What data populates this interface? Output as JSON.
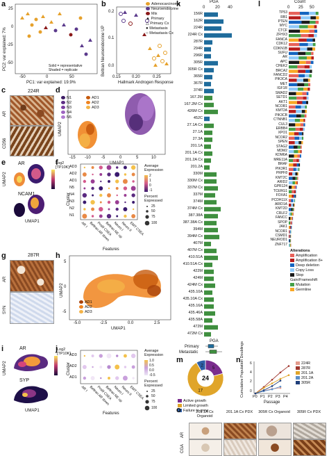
{
  "panels": {
    "a": {
      "label": "a",
      "xlabel": "PC1: var explained: 19.9%",
      "ylabel": "PC2: var explained: 7%",
      "xticks": [
        "-50",
        "0",
        "50"
      ],
      "yticks": [
        "25",
        "0",
        "-25",
        "-50"
      ],
      "note1": "Solid = representative",
      "note2": "Shaded = replicate"
    },
    "b": {
      "label": "b",
      "xlabel": "Hallmark Androgen Response",
      "ylabel": "Beltran Neuroendocrine UP",
      "xticks": [
        "0.15",
        "0.20",
        "0.25"
      ],
      "yticks": [
        "0.2",
        "0.1",
        "0.0"
      ],
      "legend": [
        "Adenocarcinoma",
        "Neuroendocrine",
        "Mix",
        "Primary",
        "Primary Cx",
        "Metastasis",
        "Metastasis Cx"
      ]
    },
    "c": {
      "label": "c",
      "title": "224R",
      "row1": "AR",
      "row2": "CD56"
    },
    "d": {
      "label": "d",
      "xlabel": "UMAP1",
      "ylabel": "UMAP2",
      "xticks": [
        "-15",
        "-10",
        "-5",
        "0",
        "5",
        "10"
      ],
      "yticks": [
        "10",
        "5",
        "0",
        "-5"
      ],
      "legend": [
        "N1",
        "N2",
        "N3",
        "N4",
        "N5",
        "AD1",
        "AD2",
        "AD3"
      ]
    },
    "e": {
      "label": "e",
      "gene1": "AR",
      "gene2": "NCAM1",
      "scale": "Log2 [TP10K]",
      "xlabel": "UMAP1",
      "ylabel": "UMAP2",
      "xticks": [
        "-15",
        "-5",
        "5"
      ],
      "yticks": [
        "10",
        "0",
        "-10"
      ]
    },
    "f": {
      "label": "f",
      "ylabel": "Cluster",
      "xlabel": "Features",
      "rows": [
        "AD3",
        "AD2",
        "AD1",
        "N5",
        "N4",
        "N3",
        "N2",
        "N1"
      ],
      "features": [
        "AR I",
        "Beltran AR down",
        "Prolif CSEA",
        "Beltran NE up",
        "Neuro I",
        "Neuro II",
        "EMT CSEA"
      ],
      "legend_title": "Average Expression",
      "legend_ticks": [
        "2",
        "1",
        "0",
        "-1"
      ],
      "pct_title": "Percent Expressed",
      "pct_values": [
        "25",
        "50",
        "75",
        "100"
      ]
    },
    "g": {
      "label": "g",
      "title": "287R",
      "row1": "AR",
      "row2": "SYN"
    },
    "h": {
      "label": "h",
      "xlabel": "UMAP1",
      "ylabel": "UMAP2",
      "xticks": [
        "-5.0",
        "-2.5",
        "0.0",
        "2.5"
      ],
      "yticks": [
        "5",
        "0",
        "-5"
      ],
      "legend": [
        "AD1",
        "AD2",
        "AD3"
      ]
    },
    "i": {
      "label": "i",
      "gene1": "AR",
      "gene2": "SYP",
      "scale": "Log2 [TP10K]",
      "xlabel": "UMAP1",
      "ylabel": "UMAP2",
      "yticks": [
        "5",
        "0",
        "-5"
      ]
    },
    "j": {
      "label": "j",
      "ylabel": "Cluster",
      "xlabel": "Features",
      "rows": [
        "AD3",
        "AD2",
        "AD1"
      ],
      "features": [
        "AR I",
        "Beltran AR down",
        "Prolif CSEA",
        "Beltran NE up",
        "Neuro I",
        "Neuro II",
        "EMT CSEA"
      ],
      "legend_title": "Average Expression",
      "legend_ticks": [
        "1.0",
        "0.5",
        "0.0",
        "-0.5"
      ],
      "pct_title": "Percent Expressed",
      "pct_values": [
        "25",
        "50",
        "75",
        "100"
      ]
    },
    "k": {
      "label": "k",
      "axis_title": "PGA",
      "ticks": [
        "0",
        "20",
        "40"
      ],
      "samples": [
        "156R",
        "162R",
        "224R",
        "224R Cx",
        "287R",
        "294R",
        "296R",
        "305R",
        "305R Cx",
        "365R",
        "367R",
        "374R",
        "167.2M",
        "167.2M Cx",
        "426M Cx",
        "452C",
        "27.1A Cx",
        "27.1A",
        "27.3A",
        "201.1A",
        "201.1A Cx",
        "201.2A Cx",
        "201.2A",
        "330M",
        "330M Cx",
        "337M Cx",
        "337M",
        "374M",
        "374M Cx",
        "387.38A",
        "387.38A Cx",
        "394M",
        "394M Cx",
        "407M",
        "407M Cx",
        "410.51A",
        "410.51A Cx",
        "422M",
        "424M",
        "424M Cx",
        "435.10A",
        "435.10A Cx",
        "435.16A",
        "435.46A",
        "435.58A",
        "472M",
        "472M Cx"
      ],
      "bottom_title": "PGA",
      "bottom_rows": [
        "Primary",
        "Metastatic"
      ]
    },
    "l": {
      "label": "l",
      "axis_title": "Count",
      "ticks": [
        "0",
        "25",
        "50"
      ],
      "genes": [
        "TP53",
        "RB1",
        "PTEN",
        "MYC",
        "CTCF",
        "ZFHX3",
        "FANCA",
        "CDK12",
        "CDKN1B",
        "SUFU",
        "AR",
        "APC",
        "CHEK2",
        "BRCA2",
        "FANCD2",
        "PIK3CA",
        "MET",
        "IGF1R",
        "SMAD2",
        "SETD1",
        "AKT1",
        "NCOR1",
        "KMT2A",
        "PIK3CB",
        "CTNNB1",
        "CUL3",
        "ERBB4",
        "XPO1",
        "NCOR2",
        "SPEN",
        "STAG2",
        "MDM2",
        "KDM6A",
        "MRE11A",
        "BRAF",
        "PIK3R1",
        "PRPF8",
        "KMT2C",
        "ARID2",
        "GPR124",
        "TCERG1",
        "FOXA1",
        "PCDH11X",
        "ARID1A",
        "KMT2D",
        "CRLF2",
        "FANCC",
        "SPOP",
        "JAK1",
        "NCOR1",
        "CSMD1",
        "NEUROD1",
        "ZNF717"
      ],
      "legend_title": "Alterations",
      "legend": [
        "Amplification",
        "Amplification 8+",
        "Deep deletion",
        "Copy Loss",
        "Stop Gain/Frameshift",
        "Mutation",
        "Germline"
      ],
      "legend_colors": [
        "#e8625a",
        "#b71c1c",
        "#1565c0",
        "#90caf9",
        "#1b1b1b",
        "#43a047",
        "#f9a825"
      ]
    },
    "m": {
      "label": "m",
      "total": "24",
      "slices": [
        {
          "name": "Active growth",
          "value": 5
        },
        {
          "name": "Limited growth",
          "value": 17
        },
        {
          "name": "Failure to grow",
          "value": 2
        }
      ],
      "legend": [
        "Active growth",
        "Limited growth",
        "Failure to grow"
      ],
      "colors": [
        "#7b2d8e",
        "#e0a52a",
        "#2e5fa7"
      ]
    },
    "n": {
      "label": "n",
      "ylabel": "Cumulative Population Doublings",
      "xlabel": "Passage",
      "xticks": [
        "P0",
        "P1",
        "P2",
        "P3",
        "P4"
      ],
      "yticks": [
        "0",
        "2",
        "4",
        "6"
      ],
      "legend": [
        "224R",
        "287R",
        "201.1A",
        "201.2A",
        "305R"
      ]
    },
    "o": {
      "label": "o",
      "columns": [
        "201.1A Cx Organoid",
        "201.1A Cx PDX",
        "305R Cx Organoid",
        "305R Cx PDX"
      ],
      "rows": [
        "AR",
        "CGA"
      ]
    }
  },
  "chart_data": [
    {
      "type": "bar",
      "title": "PGA",
      "categories": [
        "156R",
        "162R",
        "224R",
        "224R Cx",
        "287R",
        "294R",
        "296R",
        "305R",
        "305R Cx",
        "365R",
        "367R",
        "374R",
        "167.2M",
        "167.2M Cx",
        "426M Cx",
        "452C",
        "27.1A Cx",
        "27.1A",
        "27.3A",
        "201.1A",
        "201.1A Cx",
        "201.2A Cx",
        "201.2A",
        "330M",
        "330M Cx",
        "337M Cx",
        "337M",
        "374M",
        "374M Cx",
        "387.38A",
        "387.38A Cx",
        "394M",
        "394M Cx",
        "407M",
        "407M Cx",
        "410.51A",
        "410.51A Cx",
        "422M",
        "424M",
        "424M Cx",
        "435.10A",
        "435.10A Cx",
        "435.16A",
        "435.46A",
        "435.58A",
        "472M",
        "472M Cx"
      ],
      "values": [
        20,
        28,
        25,
        40,
        12,
        10,
        10,
        20,
        14,
        12,
        10,
        14,
        12,
        14,
        20,
        8,
        14,
        12,
        12,
        10,
        12,
        10,
        8,
        18,
        18,
        20,
        16,
        18,
        24,
        20,
        18,
        20,
        22,
        10,
        18,
        20,
        12,
        14,
        14,
        16,
        12,
        14,
        14,
        16,
        12,
        20,
        10
      ],
      "group_colors": {
        "primary": "#1f6c9c",
        "metastatic": "#3f8f3f"
      },
      "xlim": [
        0,
        40
      ]
    },
    {
      "type": "pie",
      "categories": [
        "Active growth",
        "Limited growth",
        "Failure to grow"
      ],
      "values": [
        5,
        17,
        2
      ],
      "center_label": "24"
    },
    {
      "type": "line",
      "xlabel": "Passage",
      "ylabel": "Cumulative Population Doublings",
      "x": [
        "P0",
        "P1",
        "P2",
        "P3",
        "P4"
      ],
      "ylim": [
        0,
        7
      ],
      "series": [
        {
          "name": "224R",
          "values": [
            0,
            0.6,
            1.0,
            1.2,
            null
          ],
          "color": "#e39b8c"
        },
        {
          "name": "287R",
          "values": [
            0,
            1.4,
            3.0,
            4.6,
            6.0
          ],
          "color": "#a0372e"
        },
        {
          "name": "201.1A",
          "values": [
            0,
            1.2,
            2.2,
            3.2,
            4.0
          ],
          "color": "#e0a52a"
        },
        {
          "name": "201.2A",
          "values": [
            0,
            0.5,
            0.9,
            1.5,
            null
          ],
          "color": "#5c8fc8"
        },
        {
          "name": "305R",
          "values": [
            0,
            0.7,
            1.6,
            2.8,
            null
          ],
          "color": "#1f3f7a"
        }
      ]
    }
  ]
}
